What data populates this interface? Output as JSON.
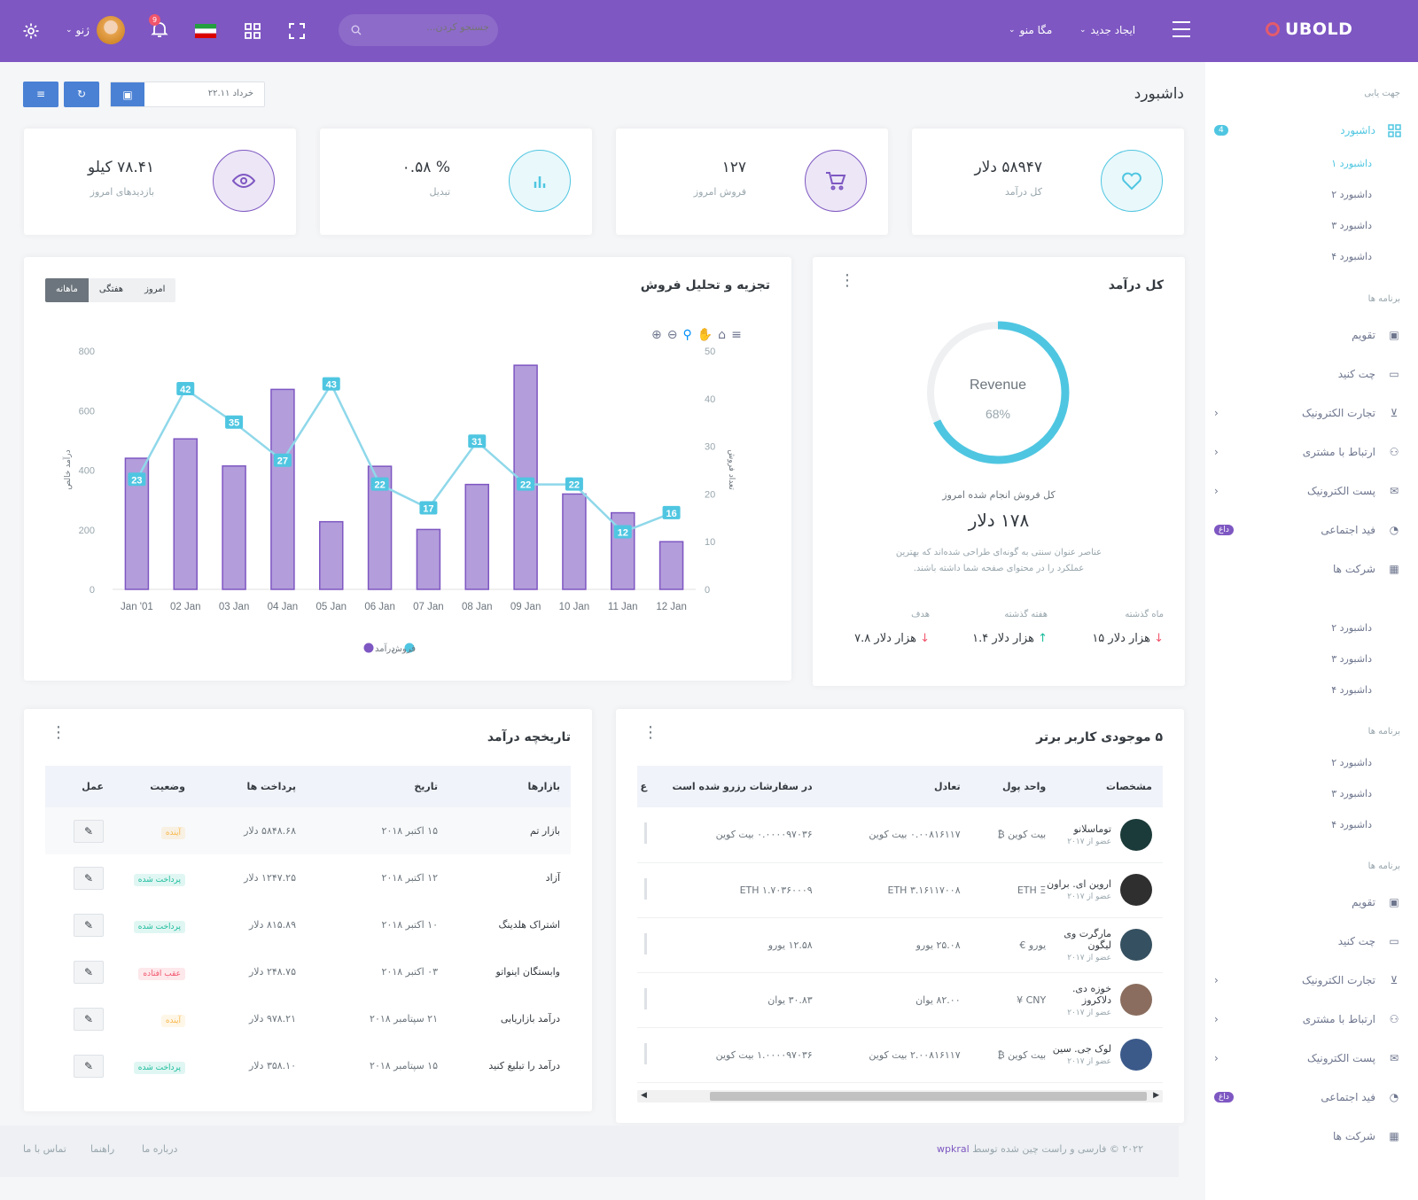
{
  "topbar": {
    "logo": "UBOLD",
    "create_new": "ایجاد جدید",
    "mega_menu": "مگا منو",
    "search_placeholder": "جستجو کردن...",
    "user_name": "ژنو",
    "notif_count": "9"
  },
  "page": {
    "title": "داشبورد",
    "date": "خرداد ۲۲.۱۱"
  },
  "stats": [
    {
      "value": "۵۸۹۴۷ دلار",
      "label": "کل درآمد",
      "icon": "heart-icon",
      "color": "#4fc6e1"
    },
    {
      "value": "۱۲۷",
      "label": "فروش امروز",
      "icon": "cart-icon",
      "color": "#7e57c2"
    },
    {
      "value": "% ۰.۵۸",
      "label": "تبدیل",
      "icon": "bar-chart-icon",
      "color": "#4fc6e1"
    },
    {
      "value": "۷۸.۴۱ کیلو",
      "label": "بازدیدهای امروز",
      "icon": "eye-icon",
      "color": "#7e57c2"
    }
  ],
  "revenue": {
    "title": "کل درآمد",
    "donut_label": "Revenue",
    "percent": "68%",
    "percent_value": 68,
    "sub": "کل فروش انجام شده امروز",
    "amount": "۱۷۸ دلار",
    "desc1": "عناصر عنوان سنتی به گونه‌ای طراحی شده‌اند که بهترین",
    "desc2": "عملکرد را در محتوای صفحه شما داشته باشند.",
    "cols": [
      {
        "label": "ماه گذشته",
        "value": "هزار دلار ۱۵",
        "dir": "down"
      },
      {
        "label": "هفته گذشته",
        "value": "هزار دلار ۱.۴",
        "dir": "up"
      },
      {
        "label": "هدف",
        "value": "هزار دلار ۷.۸",
        "dir": "down"
      }
    ]
  },
  "sales": {
    "title": "تجزیه و تحلیل فروش",
    "tabs": [
      "امروز",
      "هفتگی",
      "ماهانه"
    ]
  },
  "chart_data": {
    "type": "bar",
    "title": "تجزیه و تحلیل فروش",
    "categories": [
      "Jan '01",
      "02 Jan",
      "03 Jan",
      "04 Jan",
      "05 Jan",
      "06 Jan",
      "07 Jan",
      "08 Jan",
      "09 Jan",
      "10 Jan",
      "11 Jan",
      "12 Jan"
    ],
    "series": [
      {
        "name": "درآمد",
        "type": "bar",
        "values": [
          440,
          505,
          414,
          671,
          227,
          413,
          201,
          352,
          752,
          320,
          257,
          160
        ]
      },
      {
        "name": "فروش",
        "type": "line",
        "values": [
          23,
          42,
          35,
          27,
          43,
          22,
          17,
          31,
          22,
          22,
          12,
          16
        ]
      }
    ],
    "ylabel": "درآمد خالص",
    "y2label": "تعداد فروش",
    "ylim": [
      0,
      800
    ],
    "y2lim": [
      0,
      50
    ],
    "yticks": [
      "0",
      "200",
      "400",
      "600",
      "800"
    ],
    "y2ticks": [
      "0",
      "10",
      "20",
      "30",
      "40",
      "50"
    ],
    "legend": "bottom"
  },
  "wallet": {
    "title": "۵ موجودی کاربر برتر",
    "headers": [
      "مشخصات",
      "واحد پول",
      "تعادل",
      "در سفارشات رزرو شده است",
      "ع"
    ],
    "rows": [
      {
        "name": "توماسلانو",
        "member": "عضو از ۲۰۱۷",
        "currency": "بیت کوین ₿",
        "balance": "۰.۰۰۸۱۶۱۱۷ بیت کوین",
        "reserved": "۰.۰۰۰۰۹۷۰۳۶ بیت کوین",
        "av": "#1b3b3a"
      },
      {
        "name": "اروین ای. براون",
        "member": "عضو از ۲۰۱۷",
        "currency": "ETH Ξ",
        "balance": "ETH ۳.۱۶۱۱۷۰۰۸",
        "reserved": "ETH ۱.۷۰۳۶۰۰۰۹",
        "av": "#2f2f2f"
      },
      {
        "name": "مارگرت وی لیگون",
        "member": "عضو از ۲۰۱۷",
        "currency": "یورو €",
        "balance": "۲۵.۰۸ یورو",
        "reserved": "۱۲.۵۸ یورو",
        "av": "#355060"
      },
      {
        "name": "خوزه دی. دلاکروز",
        "member": "عضو از ۲۰۱۷",
        "currency": "CNY ¥",
        "balance": "۸۲.۰۰ یوان",
        "reserved": "۳۰.۸۳ یوان",
        "av": "#8a6d5e"
      },
      {
        "name": "لوک جی. سین",
        "member": "عضو از ۲۰۱۷",
        "currency": "بیت کوین ₿",
        "balance": "۲.۰۰۸۱۶۱۱۷ بیت کوین",
        "reserved": "۱.۰۰۰۰۹۷۰۳۶ بیت کوین",
        "av": "#3b5a8a"
      }
    ]
  },
  "history": {
    "title": "تاریخچه درآمد",
    "headers": [
      "بازارها",
      "تاریخ",
      "پرداخت ها",
      "وضعیت",
      "عمل"
    ],
    "rows": [
      {
        "market": "بازار تم",
        "date": "۱۵ اکتبر ۲۰۱۸",
        "pay": "۵۸۴۸.۶۸ دلار",
        "status": "آینده",
        "sc": "#f7b84b"
      },
      {
        "market": "آزاد",
        "date": "۱۲ اکتبر ۲۰۱۸",
        "pay": "۱۲۴۷.۲۵ دلار",
        "status": "پرداخت شده",
        "sc": "#1abc9c"
      },
      {
        "market": "اشتراک هلدینگ",
        "date": "۱۰ اکتبر ۲۰۱۸",
        "pay": "۸۱۵.۸۹ دلار",
        "status": "پرداخت شده",
        "sc": "#1abc9c"
      },
      {
        "market": "وابستگان اینواتو",
        "date": "۰۳ اکتبر ۲۰۱۸",
        "pay": "۲۴۸.۷۵ دلار",
        "status": "عقب افتاده",
        "sc": "#f1556c"
      },
      {
        "market": "درآمد بازاریابی",
        "date": "۲۱ سپتامبر ۲۰۱۸",
        "pay": "۹۷۸.۲۱ دلار",
        "status": "آینده",
        "sc": "#f7b84b"
      },
      {
        "market": "درآمد را تبلیغ کنید",
        "date": "۱۵ سپتامبر ۲۰۱۸",
        "pay": "۳۵۸.۱۰ دلار",
        "status": "پرداخت شده",
        "sc": "#1abc9c"
      }
    ]
  },
  "sidebar": {
    "nav_title": "جهت یابی",
    "dash": "داشبورد",
    "dash_badge": "4",
    "dash_subs": [
      "داشبورد ۱",
      "داشبورد ۲",
      "داشبورد ۳",
      "داشبورد ۴"
    ],
    "apps_title": "برنامه ها",
    "apps": [
      "تقویم",
      "چت کنید",
      "تجارت الکترونیک",
      "ارتباط با مشتری",
      "پست الکترونیک",
      "فید اجتماعی",
      "شرکت ها"
    ],
    "hot": "داغ",
    "extra_subs": [
      "داشبورد ۲",
      "داشبورد ۳",
      "داشبورد ۴"
    ]
  },
  "footer": {
    "copy": "۲۰۲۲ © فارسی و راست چین شده توسط",
    "brand": "wpkral",
    "links": [
      "درباره ما",
      "راهنما",
      "تماس با ما"
    ]
  }
}
